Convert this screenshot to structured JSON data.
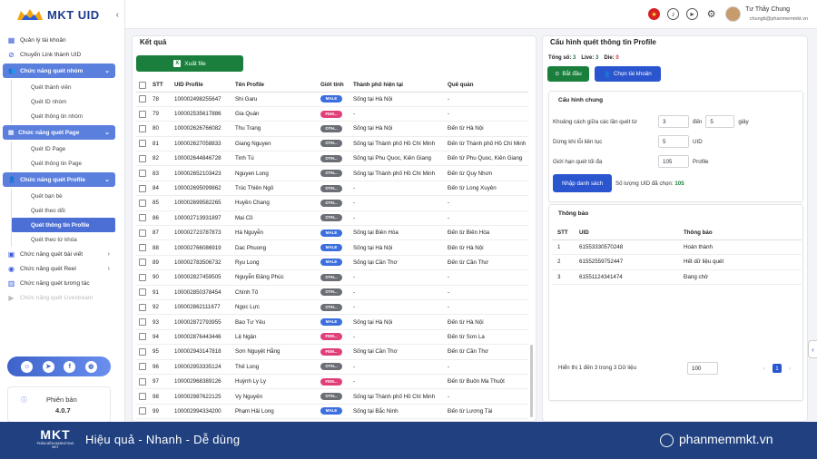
{
  "app": {
    "brand": "MKT UID"
  },
  "colors": {
    "primary": "#2a55cf",
    "success": "#1a7f3c",
    "footer": "#20407f",
    "male": "#3b6fe0",
    "female": "#e0407a",
    "other": "#6b6e75"
  },
  "sidebar": {
    "items": [
      {
        "label": "Quản lý tài khoản",
        "icon": "grid-icon"
      },
      {
        "label": "Chuyển Link thành UID",
        "icon": "link-icon"
      }
    ],
    "group_group": {
      "label": "Chức năng quét nhóm",
      "subs": [
        "Quét thành viên",
        "Quét ID nhóm",
        "Quét thông tin nhóm"
      ]
    },
    "group_page": {
      "label": "Chức năng quét Page",
      "subs": [
        "Quét ID Page",
        "Quét thông tin Page"
      ]
    },
    "group_profile": {
      "label": "Chức năng quét Profile",
      "subs": [
        "Quét bạn bè",
        "Quét theo dõi",
        "Quét thông tin Profile",
        "Quét theo từ khóa"
      ],
      "active_index": 2
    },
    "more": [
      {
        "label": "Chức năng quét bài viết",
        "icon": "document-icon"
      },
      {
        "label": "Chức năng quét Reel",
        "icon": "reel-icon"
      },
      {
        "label": "Chức năng quét tương tác",
        "icon": "interaction-icon"
      },
      {
        "label": "Chức năng quét Livestream",
        "icon": "live-icon"
      }
    ],
    "version_label": "Phiên bản",
    "version": "4.0.7"
  },
  "user": {
    "name": "Tư Thầy Chung",
    "email": "chungtt@phanmemmkt.vn"
  },
  "results": {
    "title": "Kết quả",
    "export_label": "Xuất file",
    "columns": [
      "STT",
      "UID Profile",
      "Tên Profile",
      "Giới tính",
      "Thành phố hiện tại",
      "Quê quán"
    ],
    "rows": [
      [
        "78",
        "100002498255647",
        "Shi Garu",
        "MALE",
        "Sống tại Hà Nội",
        "-"
      ],
      [
        "79",
        "100002535617886",
        "Gia Quán",
        "FEM...",
        "-",
        "-"
      ],
      [
        "80",
        "100002626766082",
        "Thu Trang",
        "OTH...",
        "Sống tại Hà Nội",
        "Đến từ Hà Nội"
      ],
      [
        "81",
        "100002627058833",
        "Giang Nguyen",
        "OTH...",
        "Sống tại Thành phố Hồ Chí Minh",
        "Đến từ Thành phố Hồ Chí Minh"
      ],
      [
        "82",
        "100002644846728",
        "Tinh Tú",
        "OTH...",
        "Sống tại Phu Quoc, Kiên Giang",
        "Đến từ Phu Quoc, Kiên Giang"
      ],
      [
        "83",
        "100002652103423",
        "Nguyen Long",
        "OTH...",
        "Sống tại Thành phố Hồ Chí Minh",
        "Đến từ Quy Nhơn"
      ],
      [
        "84",
        "100002695099862",
        "Trúc Thiên Ngô",
        "OTH...",
        "-",
        "Đến từ Long Xuyên"
      ],
      [
        "85",
        "100002699582265",
        "Huyền Chang",
        "OTH...",
        "-",
        "-"
      ],
      [
        "86",
        "100002713931897",
        "Mai Cồ",
        "OTH...",
        "-",
        "-"
      ],
      [
        "87",
        "100002723787873",
        "Hà Nguyễn",
        "MALE",
        "Sống tại Biên Hòa",
        "Đến từ Biên Hòa"
      ],
      [
        "88",
        "100002766086919",
        "Dac Phuong",
        "MALE",
        "Sống tại Hà Nội",
        "Đến từ Hà Nội"
      ],
      [
        "89",
        "100002783506732",
        "Ryu Long",
        "MALE",
        "Sống tại Cần Thơ",
        "Đến từ Cần Thơ"
      ],
      [
        "90",
        "100002827459505",
        "Nguyễn Đăng Phúc",
        "OTH...",
        "-",
        "-"
      ],
      [
        "91",
        "100002850378454",
        "Chính Tô",
        "OTH...",
        "-",
        "-"
      ],
      [
        "92",
        "100002862111677",
        "Ngọc Lực",
        "OTH...",
        "-",
        "-"
      ],
      [
        "93",
        "100002872793955",
        "Bao Tư Yêu",
        "MALE",
        "Sống tại Hà Nội",
        "Đến từ Hà Nội"
      ],
      [
        "94",
        "100002876443446",
        "Lệ Ngân",
        "FEM...",
        "-",
        "Đến từ Sơn La"
      ],
      [
        "95",
        "100002943147818",
        "Sơn Nguyệt Hằng",
        "FEM...",
        "Sống tại Cần Thơ",
        "Đến từ Cần Thơ"
      ],
      [
        "96",
        "100002953335124",
        "Thế Long",
        "OTH...",
        "-",
        "-"
      ],
      [
        "97",
        "100002968389126",
        "Huỳnh Ly Ly",
        "FEM...",
        "-",
        "Đến từ Buôn Ma Thuột"
      ],
      [
        "98",
        "100002987622125",
        "Vy Nguyên",
        "OTH...",
        "Sống tại Thành phố Hồ Chí Minh",
        "-"
      ],
      [
        "99",
        "100002994334200",
        "Phạm Hải Long",
        "MALE",
        "Sống tại Bắc Ninh",
        "Đến từ Lương Tài"
      ]
    ]
  },
  "config": {
    "title": "Cấu hình quét thông tin Profile",
    "stats": {
      "total_label": "Tổng số:",
      "total": "3",
      "live_label": "Live:",
      "live": "3",
      "die_label": "Die:",
      "die": "0"
    },
    "start_label": "Bắt đầu",
    "choose_account_label": "Chọn tài khoản",
    "general_title": "Cấu hình chung",
    "delay_label": "Khoảng cách giữa các lần quét từ",
    "delay_from": "3",
    "to_label": "đến",
    "delay_to": "5",
    "seconds_label": "giây",
    "stop_label": "Dừng khi lỗi liên tục",
    "stop_value": "5",
    "uid_unit": "UID",
    "limit_label": "Giới hạn quét tối đa",
    "limit_value": "105",
    "profile_unit": "Profile",
    "import_label": "Nhập danh sách",
    "import_count_label": "Số lượng UID đã chọn:",
    "import_count": "105"
  },
  "notifications": {
    "title": "Thông báo",
    "columns": [
      "STT",
      "UID",
      "Thông báo"
    ],
    "rows": [
      [
        "1",
        "61553330570248",
        "Hoàn thành"
      ],
      [
        "2",
        "61552559752447",
        "Hết dữ liệu quét"
      ],
      [
        "3",
        "61551124341474",
        "Đang chờ"
      ]
    ],
    "pager_text": "Hiển thị 1 đến 3 trong 3 Dữ liệu",
    "page_size": "100",
    "current_page": "1"
  },
  "footer": {
    "logo": "MKT",
    "logo_sub": "PHẦN MỀM MARKETING MKT",
    "slogan": "Hiệu quả - Nhanh - Dễ dùng",
    "url": "phanmemmkt.vn"
  }
}
